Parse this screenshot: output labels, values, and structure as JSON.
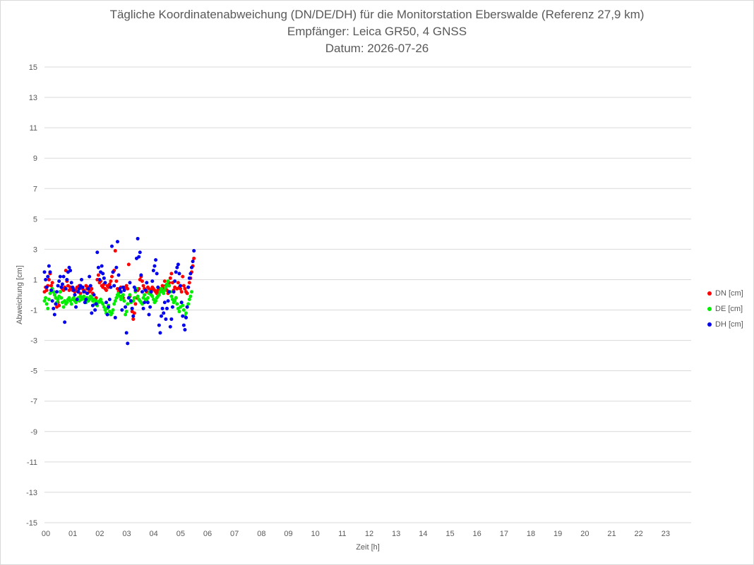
{
  "title_lines": [
    "Tägliche Koordinatenabweichung (DN/DE/DH) für die Monitorstation Eberswalde (Referenz 27,9 km)",
    "Empfänger: Leica GR50, 4 GNSS",
    "Datum: 2026-07-26"
  ],
  "chart_data": {
    "type": "scatter",
    "title": "Tägliche Koordinatenabweichung (DN/DE/DH) für die Monitorstation Eberswalde (Referenz 27,9 km)",
    "subtitle": [
      "Empfänger: Leica GR50, 4 GNSS",
      "Datum: 2026-07-26"
    ],
    "xlabel": "Zeit [h]",
    "ylabel": "Abweichung [cm]",
    "xlim": [
      0,
      24
    ],
    "ylim": [
      -15,
      15
    ],
    "x_ticks": [
      "00",
      "01",
      "02",
      "03",
      "04",
      "05",
      "06",
      "07",
      "08",
      "09",
      "10",
      "11",
      "12",
      "13",
      "14",
      "15",
      "16",
      "17",
      "18",
      "19",
      "20",
      "21",
      "22",
      "23"
    ],
    "y_ticks": [
      15,
      13,
      11,
      9,
      7,
      5,
      3,
      1,
      -1,
      -3,
      -5,
      -7,
      -9,
      -11,
      -13,
      -15
    ],
    "grid": "horizontal",
    "legend_position": "right",
    "sampling_interval_h": 0.0417,
    "series": [
      {
        "name": "DN [cm]",
        "color": "#ff0000",
        "values": [
          0.2,
          0.5,
          0.3,
          0.6,
          1.0,
          1.4,
          0.6,
          0.8,
          0.2,
          0.0,
          -0.2,
          -0.8,
          -0.5,
          -0.7,
          0.2,
          0.5,
          0.4,
          0.3,
          0.5,
          1.6,
          0.9,
          0.6,
          0.3,
          0.5,
          0.4,
          0.3,
          0.4,
          0.2,
          0.3,
          0.5,
          0.2,
          0.6,
          0.1,
          0.5,
          0.4,
          0.3,
          0.2,
          0.6,
          0.4,
          0.5,
          0.2,
          0.3,
          0.4,
          0.1,
          -0.3,
          -0.6,
          -0.2,
          1.0,
          1.3,
          0.8,
          0.9,
          0.6,
          0.5,
          0.7,
          0.4,
          0.3,
          0.6,
          0.5,
          0.7,
          0.9,
          1.2,
          1.5,
          1.6,
          2.9,
          0.9,
          0.4,
          0.2,
          0.3,
          0.5,
          -0.1,
          -0.2,
          0.3,
          0.5,
          0.6,
          0.4,
          2.0,
          -0.1,
          -0.4,
          -1.1,
          -1.6,
          -1.2,
          -0.6,
          -0.2,
          0.3,
          0.4,
          1.0,
          1.2,
          0.9,
          0.6,
          0.4,
          0.3,
          0.2,
          0.5,
          0.4,
          0.1,
          0.3,
          0.5,
          0.4,
          0.3,
          0.2,
          0.1,
          0.3,
          0.2,
          0.4,
          0.3,
          0.6,
          0.4,
          0.9,
          0.6,
          0.3,
          0.1,
          0.8,
          1.1,
          1.4,
          0.8,
          0.3,
          0.5,
          -0.2,
          0.4,
          0.8,
          0.5,
          0.4,
          0.2,
          1.2,
          0.6,
          0.4,
          0.2,
          0.1,
          0.5,
          0.8,
          1.1,
          1.5,
          1.9,
          2.4
        ]
      },
      {
        "name": "DE [cm]",
        "color": "#00ee00",
        "values": [
          -0.4,
          -0.2,
          -0.6,
          -0.9,
          -0.3,
          0.1,
          0.3,
          0.4,
          0.2,
          0.0,
          -0.2,
          -0.5,
          -0.3,
          -0.1,
          0.2,
          -0.2,
          -0.5,
          -0.8,
          -0.4,
          -0.6,
          -0.5,
          -0.3,
          -0.2,
          -0.4,
          -0.6,
          -0.3,
          -0.2,
          -0.4,
          -0.5,
          -0.3,
          -0.2,
          -0.4,
          -0.1,
          -0.3,
          -0.2,
          -0.1,
          -0.3,
          -0.5,
          -0.2,
          -0.4,
          -0.3,
          -0.1,
          -0.2,
          -0.4,
          -0.3,
          -0.6,
          -0.4,
          -0.7,
          -0.5,
          -0.4,
          -0.3,
          -0.5,
          -0.6,
          -0.8,
          -1.0,
          -1.2,
          -0.9,
          -0.7,
          -1.1,
          -1.3,
          -1.2,
          -1.0,
          -0.6,
          -0.4,
          -0.2,
          0.0,
          0.1,
          -0.1,
          -0.3,
          -0.2,
          0.0,
          -0.4,
          -1.3,
          -1.1,
          -0.6,
          -0.2,
          0.0,
          -0.5,
          -0.9,
          -0.4,
          -0.2,
          0.2,
          0.4,
          -0.1,
          -0.3,
          -0.4,
          -0.5,
          -0.6,
          -0.2,
          0.0,
          -0.3,
          -0.4,
          -0.2,
          0.1,
          0.2,
          0.0,
          -0.1,
          -0.3,
          -0.5,
          -0.4,
          -0.2,
          -0.1,
          0.0,
          0.2,
          0.4,
          0.2,
          0.1,
          0.3,
          0.5,
          0.7,
          0.9,
          0.6,
          0.2,
          -0.1,
          -0.3,
          -0.5,
          -0.4,
          -0.2,
          -0.6,
          -0.9,
          -1.1,
          -0.8,
          -0.5,
          -0.7,
          -1.0,
          -1.4,
          -1.2,
          -0.8,
          -0.6,
          -0.3,
          -0.1,
          0.2
        ]
      },
      {
        "name": "DH [cm]",
        "color": "#0000ee",
        "values": [
          1.5,
          1.0,
          0.5,
          1.2,
          1.9,
          1.5,
          0.3,
          -0.4,
          -0.9,
          -1.3,
          -0.6,
          0.2,
          0.6,
          0.9,
          1.2,
          0.5,
          0.7,
          1.2,
          -1.8,
          0.4,
          1.0,
          1.5,
          1.8,
          1.6,
          0.8,
          0.5,
          0.3,
          0.0,
          -0.8,
          -0.3,
          0.2,
          0.4,
          0.6,
          1.0,
          0.5,
          0.2,
          -0.5,
          -0.3,
          0.1,
          0.4,
          1.2,
          0.6,
          -1.2,
          -0.7,
          0.0,
          -1.0,
          -0.6,
          2.8,
          1.8,
          1.0,
          1.5,
          1.9,
          1.4,
          1.1,
          0.8,
          -0.5,
          -1.3,
          -0.8,
          -0.3,
          0.5,
          3.2,
          1.5,
          0.6,
          -1.5,
          1.8,
          3.5,
          1.3,
          0.4,
          0.2,
          -1.0,
          0.5,
          0.3,
          -0.8,
          -2.5,
          -3.2,
          -0.2,
          0.8,
          -0.4,
          -0.9,
          -1.4,
          0.5,
          0.3,
          2.4,
          3.7,
          2.5,
          2.8,
          1.3,
          0.2,
          -0.9,
          -0.5,
          0.3,
          0.8,
          -0.5,
          -1.3,
          -0.8,
          0.2,
          0.9,
          1.6,
          1.9,
          2.3,
          1.4,
          0.5,
          -2.0,
          -2.5,
          -1.4,
          -0.9,
          -1.2,
          -0.5,
          -1.6,
          -0.9,
          -0.4,
          0.2,
          -2.1,
          -1.6,
          -0.8,
          0.2,
          0.9,
          1.5,
          1.8,
          2.0,
          1.4,
          0.6,
          -0.5,
          -1.4,
          -2.0,
          -2.3,
          -1.5,
          -0.8,
          0.5,
          1.1,
          1.4,
          1.8,
          2.2,
          2.9
        ]
      }
    ]
  }
}
